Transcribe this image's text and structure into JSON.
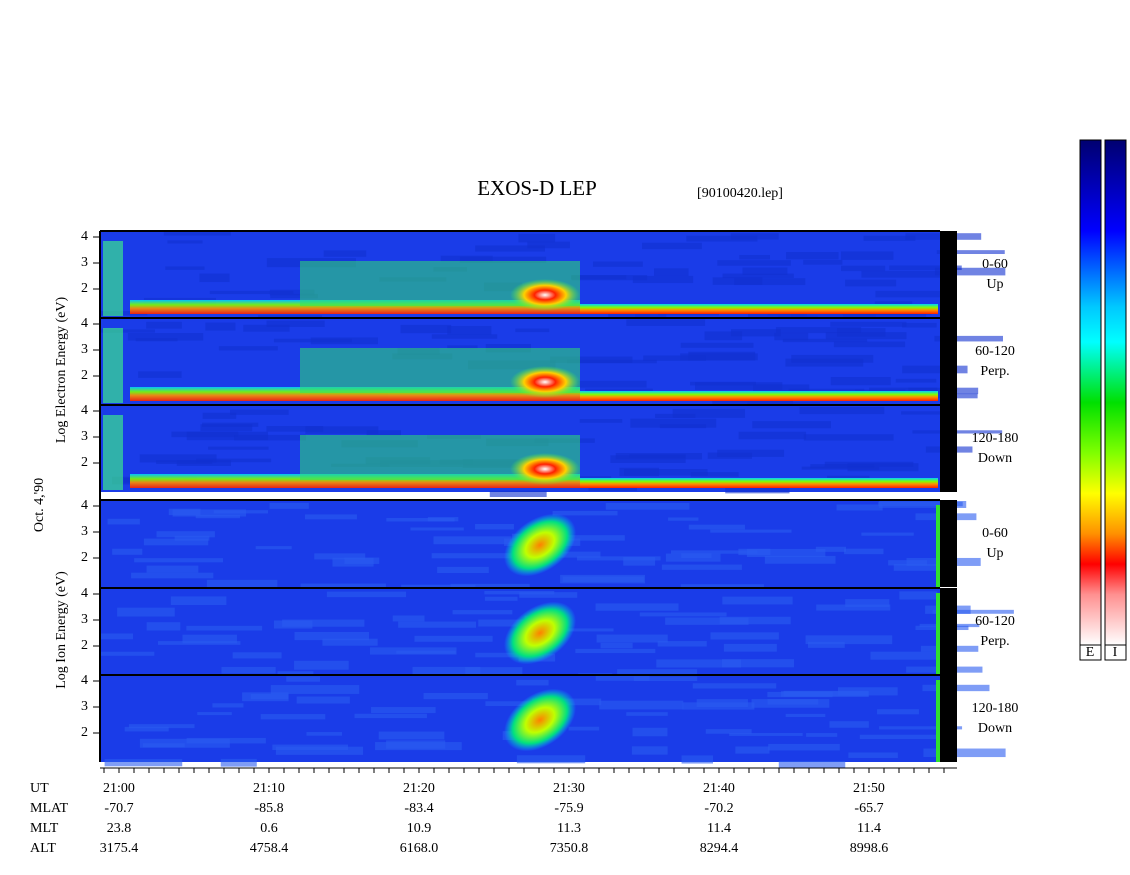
{
  "header": {
    "title": "EXOS-D LEP",
    "file": "[90100420.lep]"
  },
  "left_labels": {
    "electron": "Log Electron Energy (eV)",
    "date": "Oct. 4,'90",
    "ion": "Log Ion Energy (eV)"
  },
  "panels": [
    {
      "angle": "0-60",
      "direction": "Up"
    },
    {
      "angle": "60-120",
      "direction": "Perp."
    },
    {
      "angle": "120-180",
      "direction": "Down"
    },
    {
      "angle": "0-60",
      "direction": "Up"
    },
    {
      "angle": "60-120",
      "direction": "Perp."
    },
    {
      "angle": "120-180",
      "direction": "Down"
    }
  ],
  "energy_ticks": [
    "4",
    "3",
    "2"
  ],
  "time_axis": {
    "rows": [
      {
        "label": "UT",
        "values": [
          "21:00",
          "21:10",
          "21:20",
          "21:30",
          "21:40",
          "21:50"
        ]
      },
      {
        "label": "MLAT",
        "values": [
          "-70.7",
          "-85.8",
          "-83.4",
          "-75.9",
          "-70.2",
          "-65.7"
        ]
      },
      {
        "label": "MLT",
        "values": [
          "23.8",
          "0.6",
          "10.9",
          "11.3",
          "11.4",
          "11.4"
        ]
      },
      {
        "label": "ALT",
        "values": [
          "3175.4",
          "4758.4",
          "6168.0",
          "7350.8",
          "8294.4",
          "8998.6"
        ]
      }
    ]
  },
  "colorbars": [
    "E",
    "I"
  ]
}
